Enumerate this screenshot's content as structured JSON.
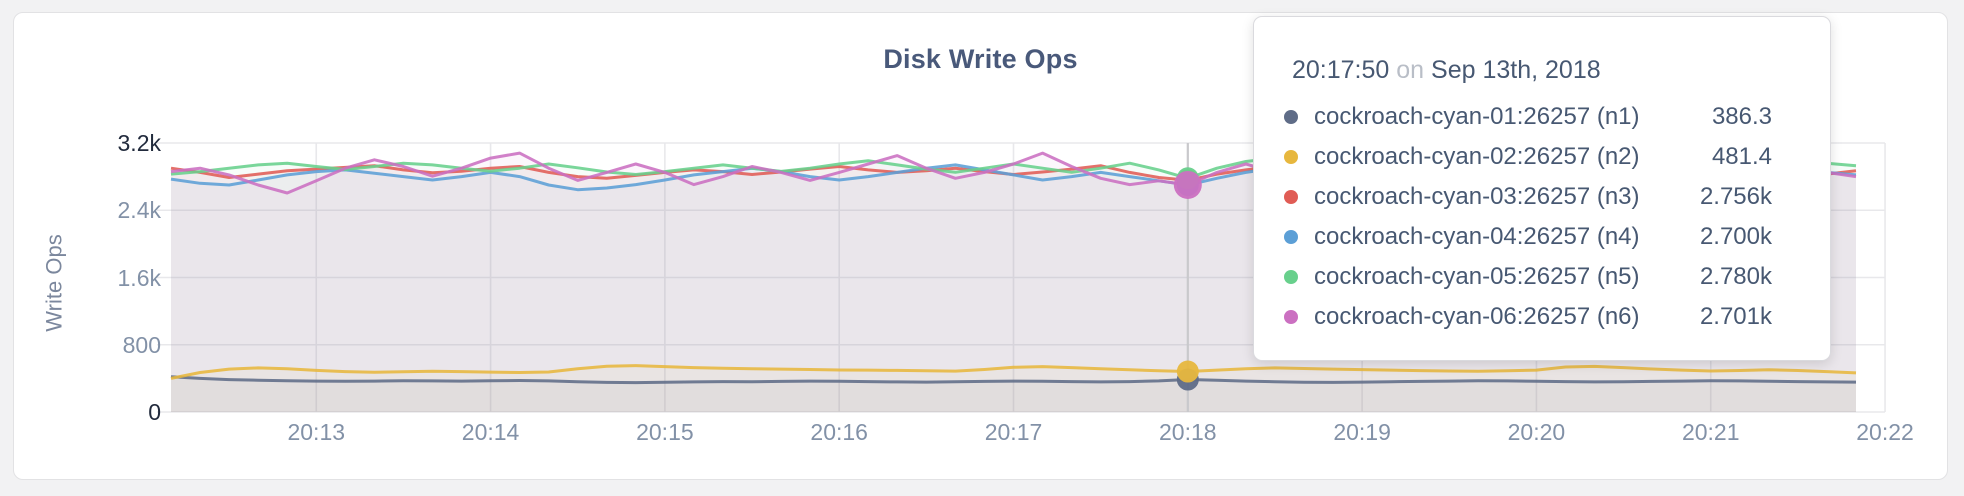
{
  "card": {
    "background": "#ffffff",
    "border_color": "#e2e2e4"
  },
  "colors": {
    "page_bg": "#f2f2f3",
    "title": "#49597a",
    "tick": "#8291a7",
    "tick_emphasis": "#212a3c",
    "ylabel": "#7b879d",
    "grid": "#e8e8eb",
    "guideline": "#c9c9cc",
    "tooltip_text": "#475872",
    "tooltip_muted": "#b9bec7"
  },
  "chart_data": {
    "type": "line",
    "title": "Disk Write Ops",
    "ylabel": "Write Ops",
    "ylim": [
      0,
      3200
    ],
    "grid": "on",
    "x_start_time": "20:12:10",
    "x_interval_seconds": 10,
    "yticks": [
      {
        "value": 0,
        "label": "0",
        "emphasis": true
      },
      {
        "value": 800,
        "label": "800",
        "emphasis": false
      },
      {
        "value": 1600,
        "label": "1.6k",
        "emphasis": false
      },
      {
        "value": 2400,
        "label": "2.4k",
        "emphasis": false
      },
      {
        "value": 3200,
        "label": "3.2k",
        "emphasis": true
      }
    ],
    "xticks": [
      "20:13",
      "20:14",
      "20:15",
      "20:16",
      "20:17",
      "20:18",
      "20:19",
      "20:20",
      "20:21",
      "20:22"
    ],
    "series": [
      {
        "name": "cockroach-cyan-01:26257 (n1)",
        "color": "#5f6c87",
        "values": [
          420,
          400,
          385,
          378,
          372,
          368,
          365,
          368,
          372,
          370,
          368,
          372,
          375,
          370,
          360,
          352,
          350,
          354,
          358,
          362,
          360,
          364,
          368,
          366,
          362,
          358,
          356,
          360,
          364,
          368,
          366,
          362,
          358,
          362,
          370,
          386.3,
          378,
          368,
          360,
          354,
          352,
          356,
          360,
          364,
          368,
          372,
          370,
          366,
          362,
          358,
          360,
          364,
          368,
          372,
          370,
          366,
          362,
          358,
          356
        ]
      },
      {
        "name": "cockroach-cyan-02:26257 (n2)",
        "color": "#e7b73e",
        "values": [
          400,
          470,
          510,
          525,
          515,
          495,
          480,
          472,
          478,
          485,
          480,
          475,
          470,
          476,
          515,
          545,
          552,
          540,
          528,
          520,
          515,
          510,
          505,
          500,
          498,
          495,
          490,
          486,
          505,
          532,
          540,
          528,
          515,
          502,
          490,
          481.4,
          498,
          515,
          525,
          518,
          510,
          504,
          498,
          492,
          488,
          484,
          490,
          498,
          535,
          542,
          528,
          512,
          498,
          488,
          494,
          502,
          494,
          480,
          465
        ]
      },
      {
        "name": "cockroach-cyan-03:26257 (n3)",
        "color": "#e05c55",
        "values": [
          2900,
          2850,
          2790,
          2830,
          2870,
          2890,
          2910,
          2930,
          2880,
          2845,
          2865,
          2900,
          2920,
          2850,
          2800,
          2780,
          2815,
          2850,
          2880,
          2860,
          2825,
          2855,
          2890,
          2920,
          2880,
          2850,
          2870,
          2900,
          2860,
          2825,
          2855,
          2890,
          2930,
          2850,
          2790,
          2756,
          2830,
          2880,
          2920,
          2950,
          2900,
          2850,
          2825,
          2860,
          2900,
          2870,
          2830,
          2800,
          2850,
          2900,
          2940,
          2890,
          2840,
          2815,
          2850,
          2890,
          2860,
          2830,
          2870
        ]
      },
      {
        "name": "cockroach-cyan-04:26257 (n4)",
        "color": "#5c9fd6",
        "values": [
          2770,
          2720,
          2700,
          2760,
          2820,
          2860,
          2880,
          2840,
          2800,
          2760,
          2800,
          2850,
          2800,
          2700,
          2645,
          2665,
          2705,
          2760,
          2820,
          2860,
          2900,
          2860,
          2800,
          2760,
          2800,
          2850,
          2900,
          2940,
          2880,
          2820,
          2760,
          2800,
          2850,
          2800,
          2750,
          2700,
          2780,
          2850,
          2900,
          2850,
          2800,
          2760,
          2800,
          2850,
          2820,
          2780,
          2740,
          2780,
          2830,
          2870,
          2820,
          2770,
          2800,
          2840,
          2800,
          2760,
          2800,
          2850,
          2820
        ]
      },
      {
        "name": "cockroach-cyan-05:26257 (n5)",
        "color": "#68d08c",
        "values": [
          2830,
          2860,
          2900,
          2940,
          2960,
          2920,
          2885,
          2920,
          2960,
          2940,
          2900,
          2865,
          2900,
          2950,
          2905,
          2855,
          2825,
          2860,
          2900,
          2940,
          2900,
          2862,
          2900,
          2950,
          2990,
          2940,
          2890,
          2852,
          2900,
          2950,
          2900,
          2852,
          2900,
          2960,
          2880,
          2780,
          2900,
          2980,
          3020,
          2960,
          2900,
          2860,
          2900,
          2950,
          2990,
          2940,
          2890,
          2940,
          2990,
          2940,
          2890,
          2852,
          2900,
          2950,
          2920,
          2880,
          2920,
          2960,
          2930
        ]
      },
      {
        "name": "cockroach-cyan-06:26257 (n6)",
        "color": "#cb70c1",
        "values": [
          2860,
          2900,
          2820,
          2700,
          2605,
          2750,
          2900,
          3000,
          2920,
          2805,
          2900,
          3020,
          3080,
          2900,
          2755,
          2850,
          2950,
          2850,
          2705,
          2800,
          2920,
          2850,
          2755,
          2850,
          2950,
          3050,
          2900,
          2780,
          2850,
          2950,
          3080,
          2920,
          2780,
          2705,
          2750,
          2701,
          2850,
          2950,
          2850,
          2755,
          2850,
          2950,
          3050,
          2900,
          2755,
          2655,
          2755,
          2900,
          3100,
          2950,
          2800,
          2555,
          2655,
          2800,
          2950,
          2850,
          2755,
          2850,
          2800
        ]
      }
    ],
    "hover": {
      "index": 35,
      "time": "20:17:50",
      "date_preposition": "on",
      "date": "Sep 13th, 2018",
      "values": [
        "386.3",
        "481.4",
        "2.756k",
        "2.700k",
        "2.780k",
        "2.701k"
      ]
    }
  }
}
